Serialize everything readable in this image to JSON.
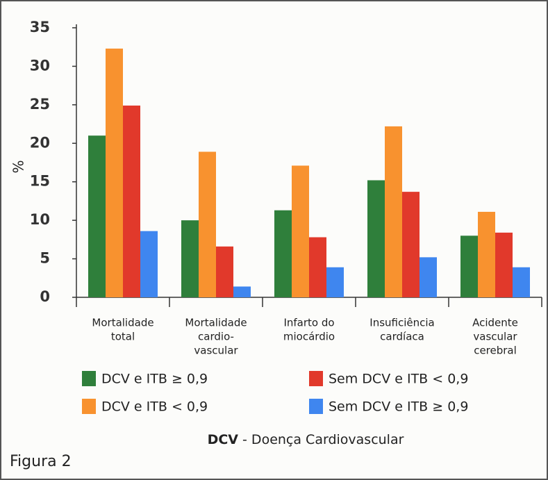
{
  "chart_data": {
    "type": "bar",
    "ylabel": "%",
    "categories": [
      [
        "Mortalidade",
        "total"
      ],
      [
        "Mortalidade",
        "cardio-",
        "vascular"
      ],
      [
        "Infarto do",
        "miocárdio"
      ],
      [
        "Insuficiência",
        "cardíaca"
      ],
      [
        "Acidente",
        "vascular",
        "cerebral"
      ]
    ],
    "series": [
      {
        "name": "DCV e ITB ≥ 0,9",
        "color": "#2f7f3b",
        "values": [
          21,
          10,
          11.3,
          15.2,
          8
        ]
      },
      {
        "name": "DCV e ITB < 0,9",
        "color": "#f8922f",
        "values": [
          32.3,
          18.9,
          17.1,
          22.2,
          11.1
        ]
      },
      {
        "name": "Sem DCV e ITB < 0,9",
        "color": "#e1392b",
        "values": [
          24.9,
          6.6,
          7.8,
          13.7,
          8.4
        ]
      },
      {
        "name": "Sem DCV e ITB ≥ 0,9",
        "color": "#3f86ef",
        "values": [
          8.6,
          1.4,
          3.9,
          5.2,
          3.9
        ]
      }
    ],
    "ylim": [
      0,
      35
    ],
    "yticks": [
      0,
      5,
      10,
      15,
      20,
      25,
      30,
      35
    ],
    "footnote": {
      "abbr": "DCV",
      "text": " - Doença Cardiovascular"
    },
    "figure_label": "Figura 2"
  }
}
